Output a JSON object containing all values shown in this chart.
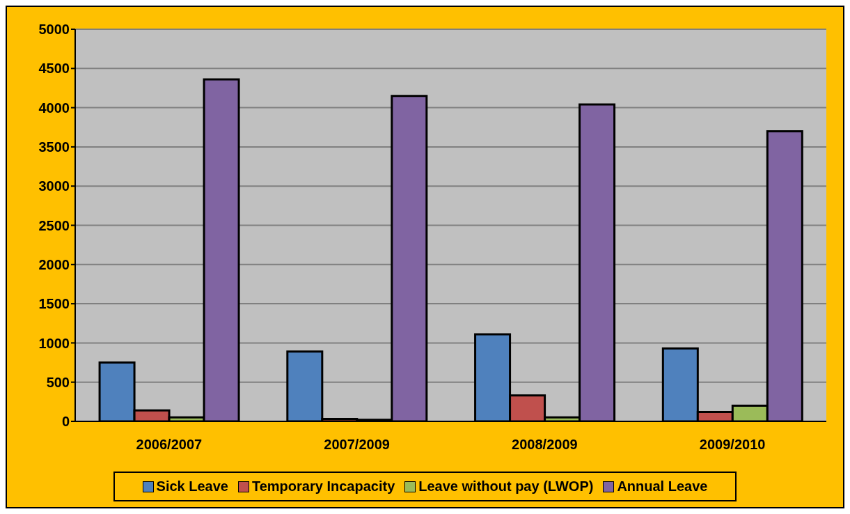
{
  "chart_data": {
    "type": "bar",
    "categories": [
      "2006/2007",
      "2007/2009",
      "2008/2009",
      "2009/2010"
    ],
    "series": [
      {
        "name": "Sick Leave",
        "color": "#4f81bd",
        "values": [
          750,
          890,
          1110,
          930
        ]
      },
      {
        "name": "Temporary Incapacity",
        "color": "#c0504d",
        "values": [
          140,
          30,
          330,
          120
        ]
      },
      {
        "name": "Leave without pay (LWOP)",
        "color": "#9bbb59",
        "values": [
          50,
          20,
          50,
          200
        ]
      },
      {
        "name": "Annual Leave",
        "color": "#8064a2",
        "values": [
          4360,
          4150,
          4040,
          3700
        ]
      }
    ],
    "ylim": [
      0,
      5000
    ],
    "yticks": [
      0,
      500,
      1000,
      1500,
      2000,
      2500,
      3000,
      3500,
      4000,
      4500,
      5000
    ],
    "grid": "y",
    "legend": "bottom"
  }
}
